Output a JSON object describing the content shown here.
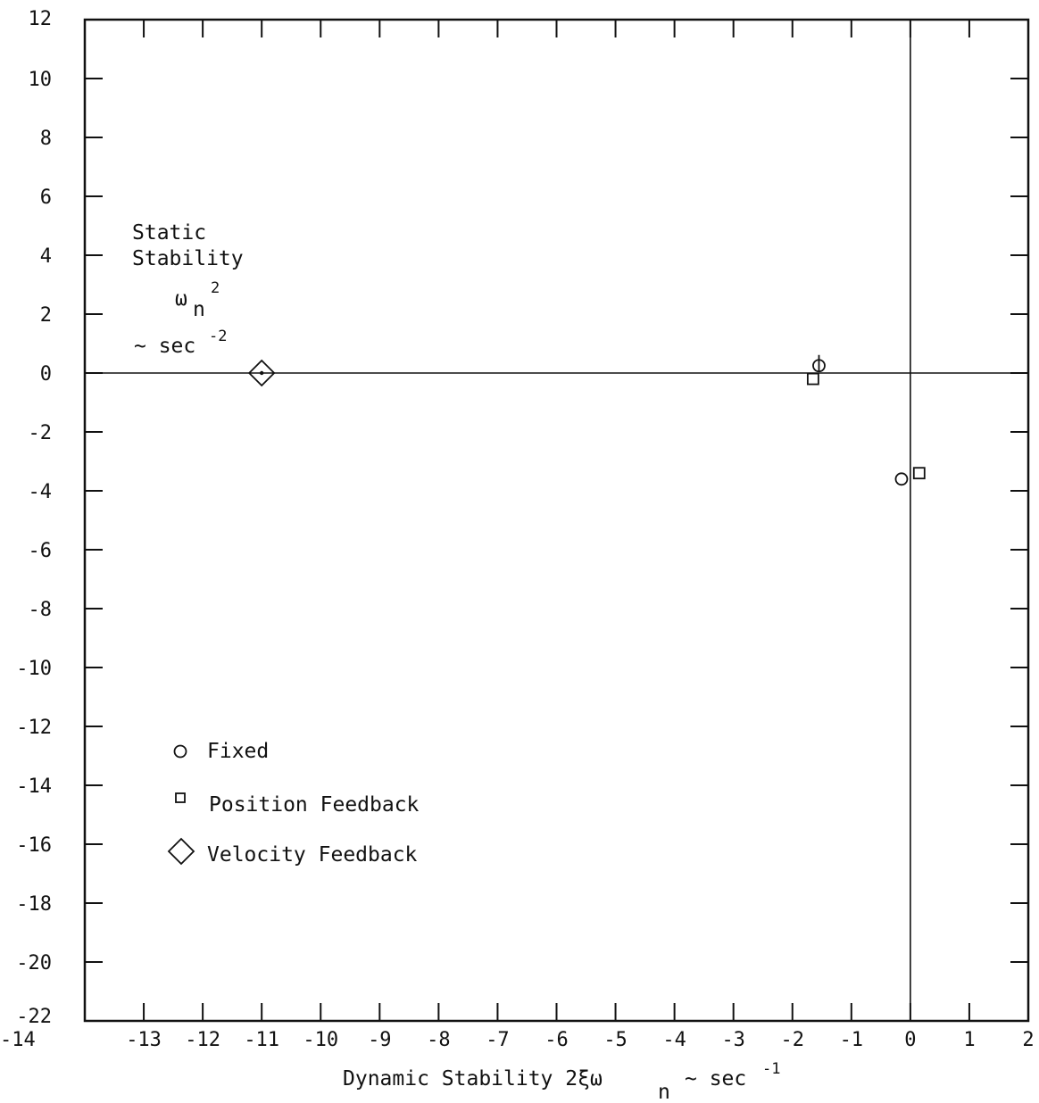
{
  "chart_data": {
    "type": "scatter",
    "title": "",
    "xlabel": {
      "main": "Dynamic Stability 2ξω",
      "sub": "n",
      "unit": "~ sec",
      "exp": "-1"
    },
    "ylabel": {
      "line1": "Static",
      "line2": "Stability",
      "symbol": "ω",
      "symbol_sub": "n",
      "symbol_exp": "2",
      "unit": "~ sec",
      "unit_exp": "-2"
    },
    "xlim": [
      -14,
      2
    ],
    "ylim": [
      -22,
      12
    ],
    "x_ticks": [
      -14,
      -13,
      -12,
      -11,
      -10,
      -9,
      -8,
      -7,
      -6,
      -5,
      -4,
      -3,
      -2,
      -1,
      0,
      1,
      2
    ],
    "x_tick_labels": [
      "-14",
      "-13",
      "-12",
      "-11",
      "-10",
      "-9",
      "-8",
      "-7",
      "-6",
      "-5",
      "-4",
      "-3",
      "-2",
      "-1",
      "0",
      "1",
      "2"
    ],
    "y_ticks": [
      12,
      10,
      8,
      6,
      4,
      2,
      0,
      -2,
      -4,
      -6,
      -8,
      -10,
      -12,
      -14,
      -16,
      -18,
      -20,
      -22
    ],
    "y_tick_labels": [
      "12",
      "10",
      "8",
      "6",
      "4",
      "2",
      "0",
      "-2",
      "-4",
      "-6",
      "-8",
      "-10",
      "-12",
      "-14",
      "-16",
      "-18",
      "-20",
      "-22"
    ],
    "grid": false,
    "reference_lines": {
      "x": 0,
      "y": 0
    },
    "legend_position": "bottom-left",
    "series": [
      {
        "name": "Fixed",
        "marker": "circle",
        "points": [
          [
            -1.55,
            0.25
          ],
          [
            -0.15,
            -3.6
          ]
        ]
      },
      {
        "name": "Position Feedback",
        "marker": "square",
        "points": [
          [
            -1.65,
            -0.2
          ],
          [
            0.15,
            -3.4
          ]
        ]
      },
      {
        "name": "Velocity Feedback",
        "marker": "diamond",
        "points": [
          [
            -11.0,
            0.0
          ]
        ]
      }
    ]
  }
}
